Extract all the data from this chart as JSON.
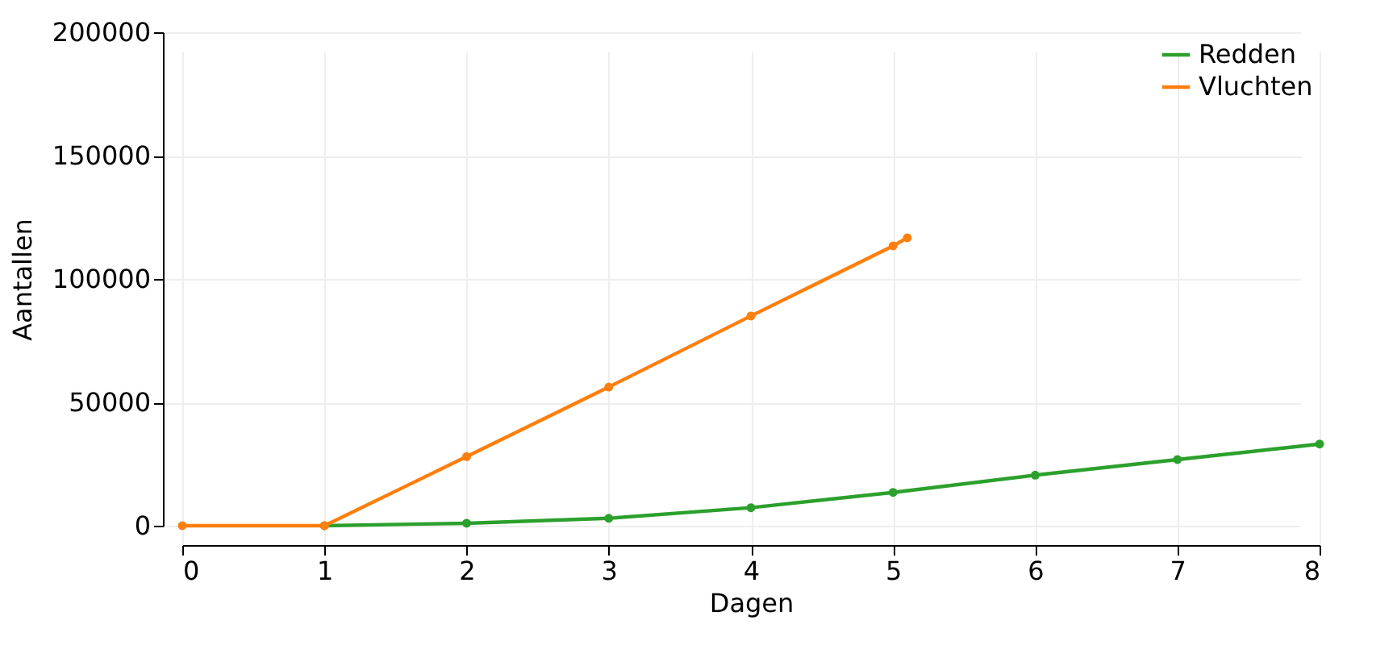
{
  "chart_data": {
    "type": "line",
    "xlabel": "Dagen",
    "ylabel": "Aantallen",
    "xlim": [
      0,
      8
    ],
    "xticks": [
      0,
      1,
      2,
      3,
      4,
      5,
      6,
      7,
      8
    ],
    "ylim": [
      0,
      200000
    ],
    "yticks": [
      0,
      50000,
      100000,
      150000,
      200000
    ],
    "grid": true,
    "legend": "top right",
    "marker": "circle",
    "line_style": "solid",
    "series": [
      {
        "name": "Redden",
        "color": "#2ca02c",
        "x": [
          1,
          2,
          3,
          4,
          5,
          6,
          7,
          8
        ],
        "values": [
          0,
          1000,
          3000,
          7300,
          13500,
          20500,
          26800,
          33100
        ]
      },
      {
        "name": "Vluchten",
        "color": "#ff7f0e",
        "x": [
          0,
          1,
          2,
          3,
          4,
          5,
          5.1
        ],
        "values": [
          0,
          0,
          28000,
          56200,
          85000,
          113400,
          116700
        ]
      }
    ]
  }
}
